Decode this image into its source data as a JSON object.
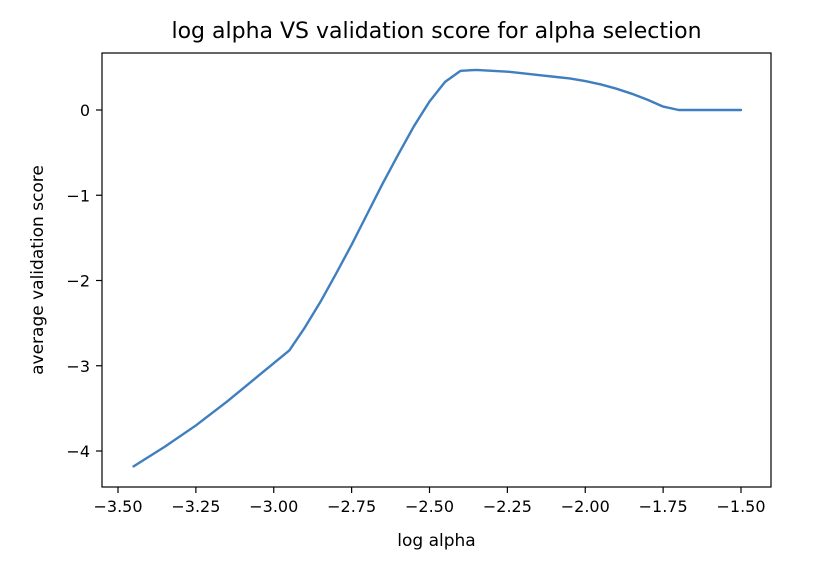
{
  "chart_data": {
    "type": "line",
    "title": "log alpha VS validation score for alpha selection",
    "xlabel": "log alpha",
    "ylabel": "average validation score",
    "xlim": [
      -3.5,
      -1.5
    ],
    "ylim": [
      -4.5,
      0.5
    ],
    "xticks": [
      -3.5,
      -3.25,
      -3.0,
      -2.75,
      -2.5,
      -2.25,
      -2.0,
      -1.75,
      -1.5
    ],
    "xtick_labels": [
      "−3.50",
      "−3.25",
      "−3.00",
      "−2.75",
      "−2.50",
      "−2.25",
      "−2.00",
      "−1.75",
      "−1.50"
    ],
    "yticks": [
      -4,
      -3,
      -2,
      -1,
      0
    ],
    "ytick_labels": [
      "−4",
      "−3",
      "−2",
      "−1",
      "0"
    ],
    "grid": false,
    "series": [
      {
        "color": "#3f7fbf",
        "x": [
          -3.45,
          -3.35,
          -3.25,
          -3.15,
          -3.05,
          -2.95,
          -2.9,
          -2.85,
          -2.8,
          -2.75,
          -2.7,
          -2.65,
          -2.6,
          -2.55,
          -2.5,
          -2.45,
          -2.4,
          -2.35,
          -2.3,
          -2.25,
          -2.2,
          -2.15,
          -2.1,
          -2.05,
          -2.0,
          -1.95,
          -1.9,
          -1.85,
          -1.8,
          -1.75,
          -1.7,
          -1.65,
          -1.6,
          -1.55,
          -1.5
        ],
        "y": [
          -4.18,
          -3.95,
          -3.7,
          -3.42,
          -3.12,
          -2.82,
          -2.55,
          -2.25,
          -1.92,
          -1.58,
          -1.22,
          -0.86,
          -0.52,
          -0.19,
          0.1,
          0.33,
          0.46,
          0.47,
          0.46,
          0.45,
          0.43,
          0.41,
          0.39,
          0.37,
          0.34,
          0.3,
          0.25,
          0.19,
          0.12,
          0.04,
          0.0,
          0.0,
          0.0,
          0.0,
          0.0
        ]
      }
    ]
  }
}
